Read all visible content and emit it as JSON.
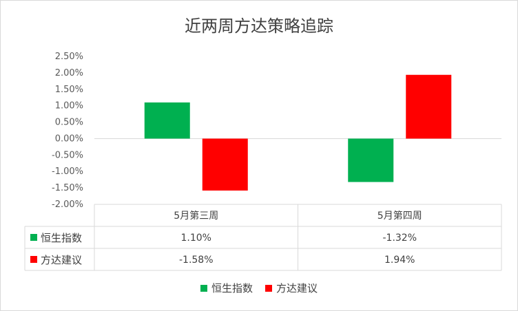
{
  "chart_data": {
    "type": "bar",
    "title": "近两周方达策略追踪",
    "categories": [
      "5月第三周",
      "5月第四周"
    ],
    "series": [
      {
        "name": "恒生指数",
        "values": [
          1.1,
          -1.32
        ],
        "labels": [
          "1.10%",
          "-1.32%"
        ],
        "color": "#00b050"
      },
      {
        "name": "方达建议",
        "values": [
          -1.58,
          1.94
        ],
        "labels": [
          "-1.58%",
          "1.94%"
        ],
        "color": "#ff0000"
      }
    ],
    "ylim": [
      -2.0,
      2.5
    ],
    "yticks": [
      "2.50%",
      "2.00%",
      "1.50%",
      "1.00%",
      "0.50%",
      "0.00%",
      "-0.50%",
      "-1.00%",
      "-1.50%",
      "-2.00%"
    ],
    "ytick_values": [
      2.5,
      2.0,
      1.5,
      1.0,
      0.5,
      0.0,
      -0.5,
      -1.0,
      -1.5,
      -2.0
    ],
    "grid": false,
    "legend_position": "bottom",
    "data_table": true
  }
}
